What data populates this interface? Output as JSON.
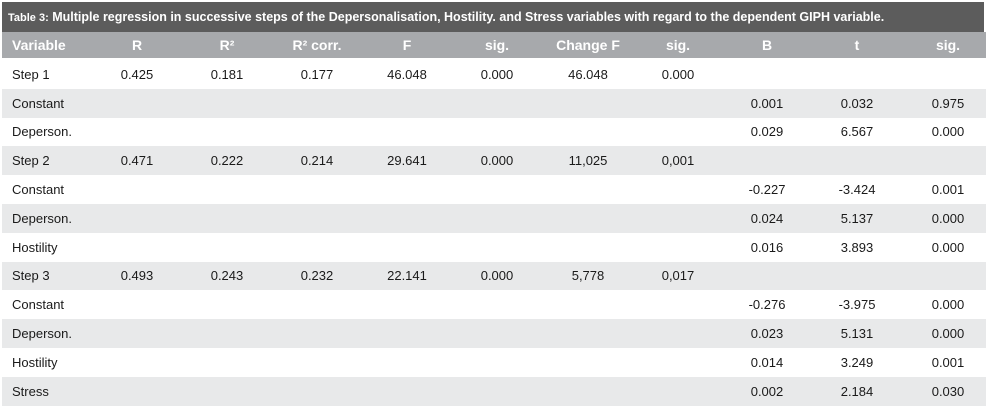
{
  "title": {
    "label": "Table 3:",
    "text": "Multiple regression in successive steps of the Depersonalisation, Hostility. and Stress variables with regard to the dependent GIPH variable."
  },
  "columns": [
    "Variable",
    "R",
    "R²",
    "R² corr.",
    "F",
    "sig.",
    "Change F",
    "sig.",
    "B",
    "t",
    "sig."
  ],
  "rows": [
    [
      "Step 1",
      "0.425",
      "0.181",
      "0.177",
      "46.048",
      "0.000",
      "46.048",
      "0.000",
      "",
      "",
      ""
    ],
    [
      "Constant",
      "",
      "",
      "",
      "",
      "",
      "",
      "",
      "0.001",
      "0.032",
      "0.975"
    ],
    [
      "Deperson.",
      "",
      "",
      "",
      "",
      "",
      "",
      "",
      "0.029",
      "6.567",
      "0.000"
    ],
    [
      "Step 2",
      "0.471",
      "0.222",
      "0.214",
      "29.641",
      "0.000",
      "11,025",
      "0,001",
      "",
      "",
      ""
    ],
    [
      "Constant",
      "",
      "",
      "",
      "",
      "",
      "",
      "",
      "-0.227",
      "-3.424",
      "0.001"
    ],
    [
      "Deperson.",
      "",
      "",
      "",
      "",
      "",
      "",
      "",
      "0.024",
      "5.137",
      "0.000"
    ],
    [
      "Hostility",
      "",
      "",
      "",
      "",
      "",
      "",
      "",
      "0.016",
      "3.893",
      "0.000"
    ],
    [
      "Step 3",
      "0.493",
      "0.243",
      "0.232",
      "22.141",
      "0.000",
      "5,778",
      "0,017",
      "",
      "",
      ""
    ],
    [
      "Constant",
      "",
      "",
      "",
      "",
      "",
      "",
      "",
      "-0.276",
      "-3.975",
      "0.000"
    ],
    [
      "Deperson.",
      "",
      "",
      "",
      "",
      "",
      "",
      "",
      "0.023",
      "5.131",
      "0.000"
    ],
    [
      "Hostility",
      "",
      "",
      "",
      "",
      "",
      "",
      "",
      "0.014",
      "3.249",
      "0.001"
    ],
    [
      "Stress",
      "",
      "",
      "",
      "",
      "",
      "",
      "",
      "0.002",
      "2.184",
      "0.030"
    ]
  ],
  "colors": {
    "title_bg": "#5c5c5c",
    "header_bg": "#a7a9ac",
    "stripe_bg": "#e8e9ea"
  }
}
